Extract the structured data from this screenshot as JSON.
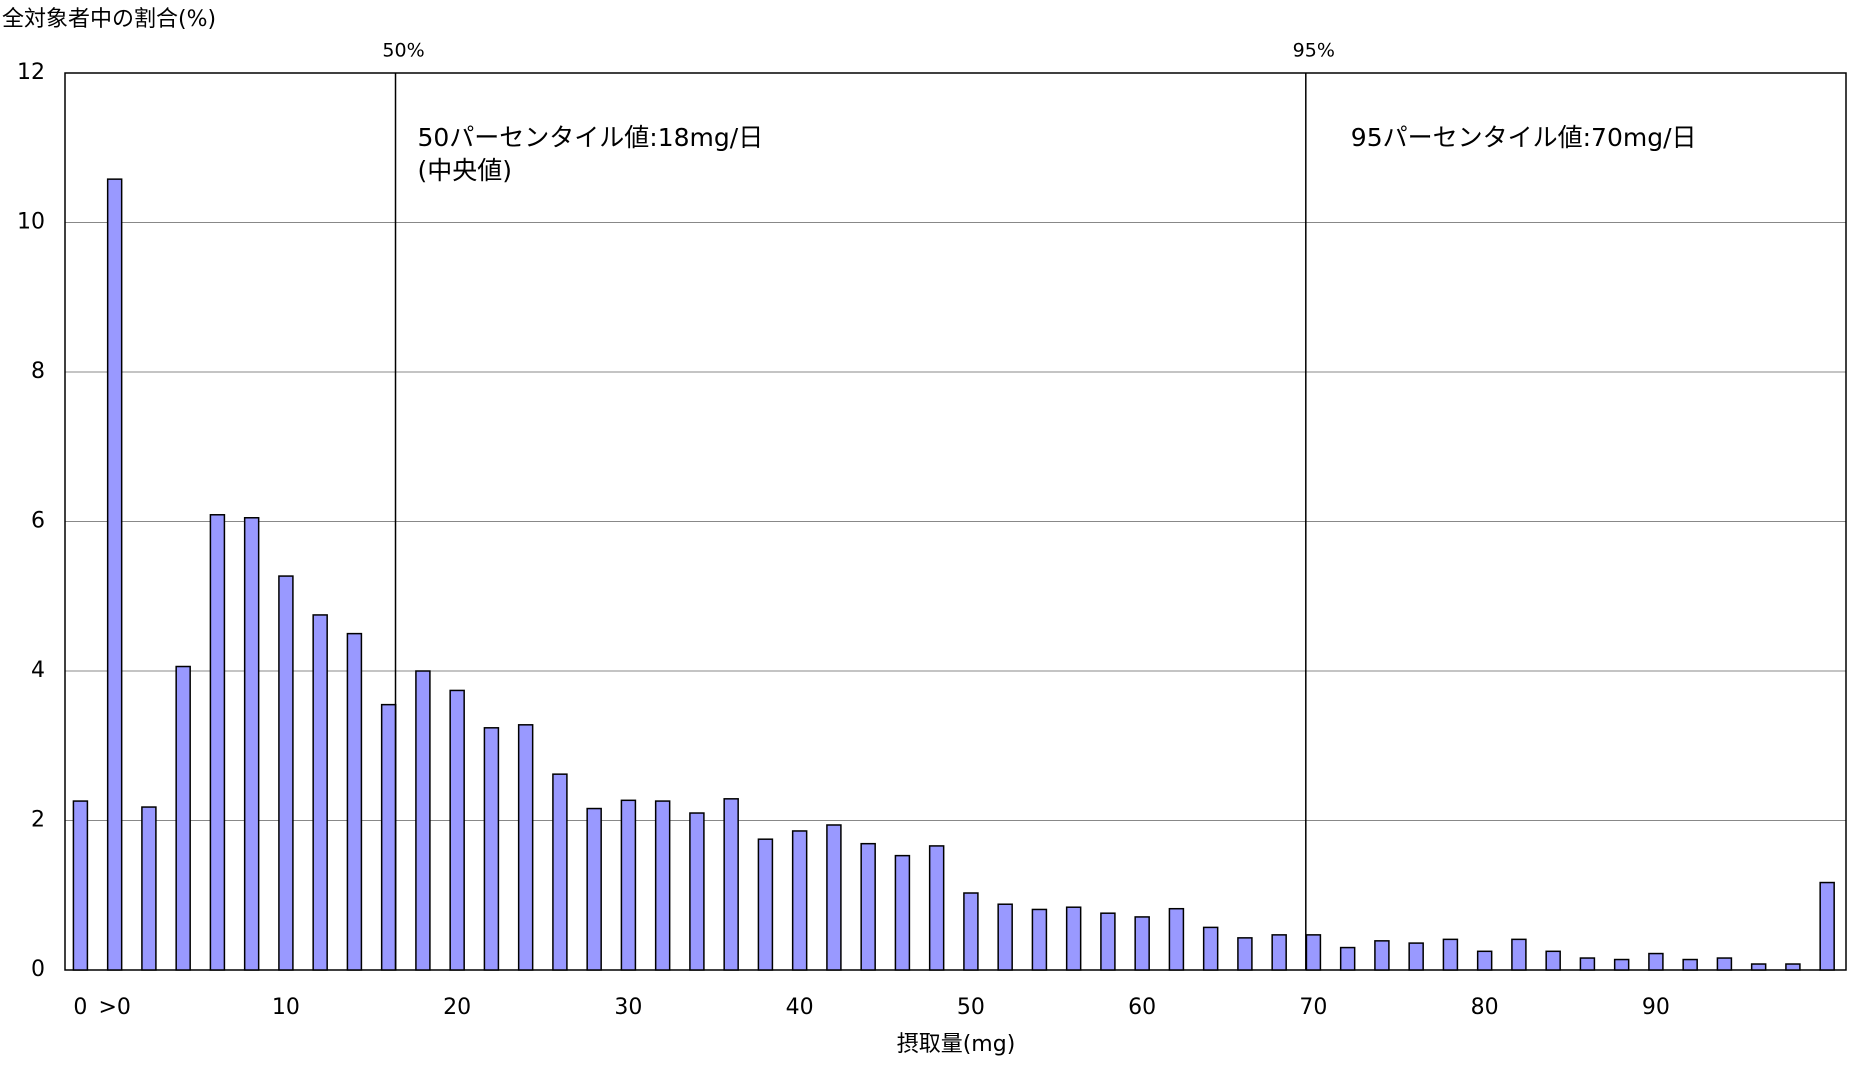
{
  "chart_data": {
    "type": "bar",
    "y_label": "全対象者中の割合(%)",
    "x_label": "摂取量(mg)",
    "categories": [
      "0",
      ">0",
      null,
      null,
      null,
      null,
      "10",
      null,
      null,
      null,
      null,
      "20",
      null,
      null,
      null,
      null,
      "30",
      null,
      null,
      null,
      null,
      "40",
      null,
      null,
      null,
      null,
      "50",
      null,
      null,
      null,
      null,
      "60",
      null,
      null,
      null,
      null,
      "70",
      null,
      null,
      null,
      null,
      "80",
      null,
      null,
      null,
      null,
      "90",
      null,
      null,
      null,
      null,
      null
    ],
    "values": [
      2.26,
      10.58,
      2.18,
      4.06,
      6.09,
      6.05,
      5.27,
      4.75,
      4.5,
      3.55,
      4.0,
      3.74,
      3.24,
      3.28,
      2.62,
      2.16,
      2.27,
      2.26,
      2.1,
      2.29,
      1.75,
      1.86,
      1.94,
      1.69,
      1.53,
      1.66,
      1.03,
      0.88,
      0.81,
      0.84,
      0.76,
      0.71,
      0.82,
      0.57,
      0.43,
      0.47,
      0.47,
      0.3,
      0.39,
      0.36,
      0.41,
      0.25,
      0.41,
      0.25,
      0.16,
      0.14,
      0.22,
      0.14,
      0.16,
      0.08,
      0.08,
      1.17
    ],
    "color": "#9999ff",
    "ylim": [
      0,
      12
    ],
    "yticks": [
      0,
      2,
      4,
      6,
      8,
      10,
      12
    ],
    "grid": true,
    "reference_lines": [
      {
        "value": 18,
        "label": "50%",
        "note": [
          "50パーセンタイル値:18mg/日",
          "(中央値)"
        ]
      },
      {
        "value": 70,
        "label": "95%",
        "note": [
          "95パーセンタイル値:70mg/日"
        ]
      }
    ]
  }
}
